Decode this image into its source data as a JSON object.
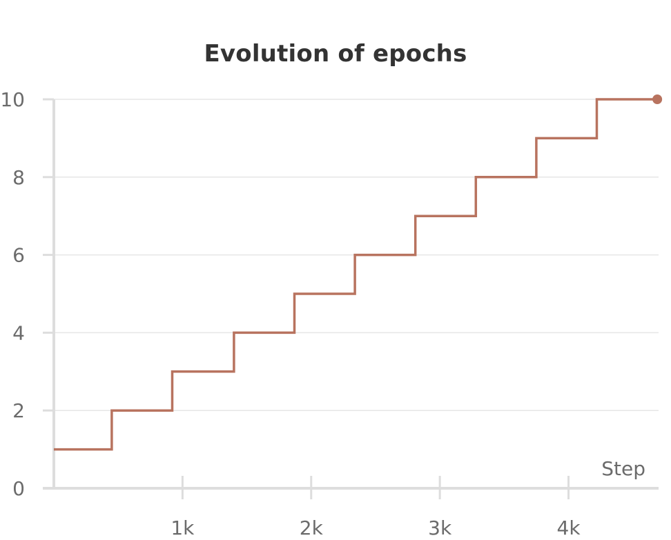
{
  "chart_data": {
    "type": "line",
    "title": "Evolution of epochs",
    "xlabel": "Step",
    "ylabel": "",
    "xlim": [
      0,
      4700
    ],
    "ylim": [
      0,
      10
    ],
    "x_ticks": [
      1000,
      2000,
      3000,
      4000
    ],
    "x_tick_labels": [
      "1k",
      "2k",
      "3k",
      "4k"
    ],
    "y_ticks": [
      0,
      2,
      4,
      6,
      8,
      10
    ],
    "y_tick_labels": [
      "0",
      "2",
      "4",
      "6",
      "8",
      "10"
    ],
    "grid": true,
    "line_style": "step",
    "color": "#b8735f",
    "series": [
      {
        "x": [
          0,
          450,
          450,
          920,
          920,
          1400,
          1400,
          1870,
          1870,
          2340,
          2340,
          2810,
          2810,
          3280,
          3280,
          3750,
          3750,
          4220,
          4220,
          4690
        ],
        "values": [
          1,
          1,
          2,
          2,
          3,
          3,
          4,
          4,
          5,
          5,
          6,
          6,
          7,
          7,
          8,
          8,
          9,
          9,
          10,
          10
        ]
      }
    ]
  }
}
